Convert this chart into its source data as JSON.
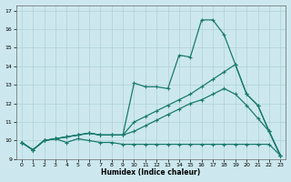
{
  "xlabel": "Humidex (Indice chaleur)",
  "xlim": [
    -0.5,
    23.5
  ],
  "ylim": [
    9,
    17.3
  ],
  "yticks": [
    9,
    10,
    11,
    12,
    13,
    14,
    15,
    16,
    17
  ],
  "xticks": [
    0,
    1,
    2,
    3,
    4,
    5,
    6,
    7,
    8,
    9,
    10,
    11,
    12,
    13,
    14,
    15,
    16,
    17,
    18,
    19,
    20,
    21,
    22,
    23
  ],
  "bg_color": "#cce8ee",
  "line_color": "#1a7a6e",
  "grid_color": "#b0d0d8",
  "lines": [
    {
      "x": [
        0,
        1,
        2,
        3,
        4,
        5,
        6,
        7,
        8,
        9,
        10,
        11,
        12,
        13,
        14,
        15,
        16,
        17,
        18,
        19,
        20,
        21,
        22,
        23
      ],
      "y": [
        9.9,
        9.5,
        10.0,
        10.1,
        9.9,
        10.1,
        10.0,
        9.9,
        9.9,
        9.8,
        9.8,
        9.8,
        9.8,
        9.8,
        9.8,
        9.8,
        9.8,
        9.8,
        9.8,
        9.8,
        9.8,
        9.8,
        9.8,
        9.2
      ]
    },
    {
      "x": [
        0,
        1,
        2,
        3,
        4,
        5,
        6,
        7,
        8,
        9,
        10,
        11,
        12,
        13,
        14,
        15,
        16,
        17,
        18,
        19,
        20,
        21,
        22,
        23
      ],
      "y": [
        9.9,
        9.5,
        10.0,
        10.1,
        10.2,
        10.3,
        10.4,
        10.3,
        10.3,
        10.3,
        13.1,
        12.9,
        12.9,
        12.8,
        14.6,
        14.5,
        16.5,
        16.5,
        15.7,
        14.1,
        12.5,
        11.9,
        10.5,
        9.2
      ]
    },
    {
      "x": [
        0,
        1,
        2,
        3,
        4,
        5,
        6,
        7,
        8,
        9,
        10,
        11,
        12,
        13,
        14,
        15,
        16,
        17,
        18,
        19,
        20,
        21,
        22,
        23
      ],
      "y": [
        9.9,
        9.5,
        10.0,
        10.1,
        10.2,
        10.3,
        10.4,
        10.3,
        10.3,
        10.3,
        10.5,
        10.8,
        11.1,
        11.4,
        11.7,
        12.0,
        12.2,
        12.5,
        12.8,
        12.5,
        11.9,
        11.2,
        10.5,
        9.2
      ]
    },
    {
      "x": [
        0,
        1,
        2,
        3,
        4,
        5,
        6,
        7,
        8,
        9,
        10,
        11,
        12,
        13,
        14,
        15,
        16,
        17,
        18,
        19,
        20,
        21,
        22,
        23
      ],
      "y": [
        9.9,
        9.5,
        10.0,
        10.1,
        10.2,
        10.3,
        10.4,
        10.3,
        10.3,
        10.3,
        11.0,
        11.3,
        11.6,
        11.9,
        12.2,
        12.5,
        12.9,
        13.3,
        13.7,
        14.1,
        12.5,
        11.9,
        10.5,
        9.2
      ]
    }
  ]
}
